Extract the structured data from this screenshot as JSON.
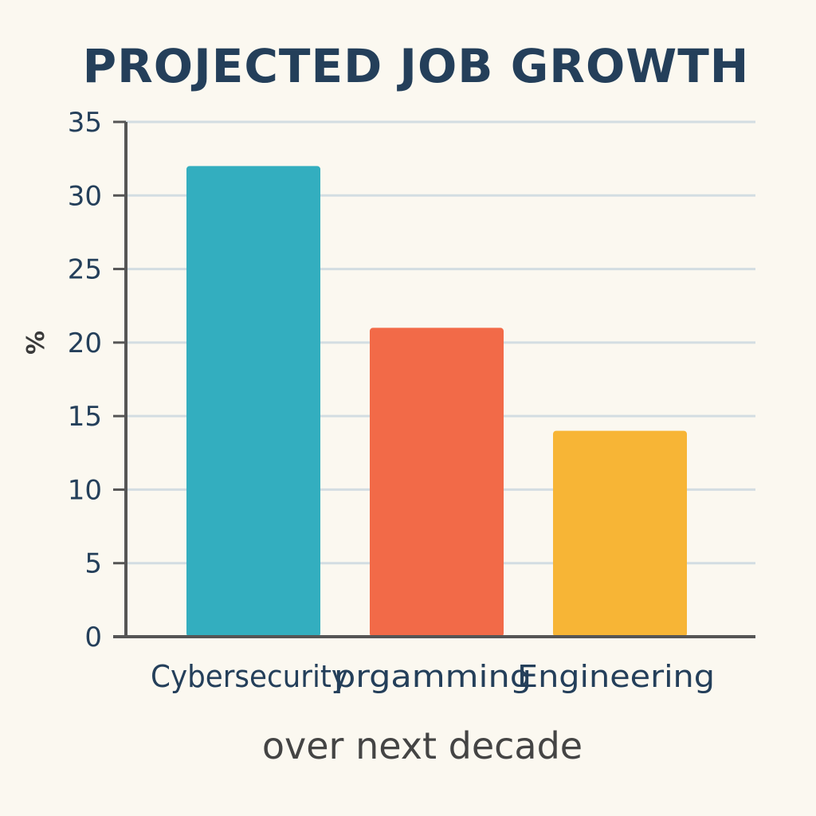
{
  "chart_data": {
    "type": "bar",
    "title": "PROJECTED JOB GROWTH",
    "xlabel": "over next decade",
    "ylabel": "%",
    "categories": [
      "Cybersecurity",
      "prgamming",
      "Engineering"
    ],
    "values": [
      32,
      21,
      14
    ],
    "ylim": [
      0,
      35
    ],
    "yticks": [
      0,
      5,
      10,
      15,
      20,
      25,
      30,
      35
    ],
    "grid": true,
    "legend": "none"
  },
  "colors": {
    "background": "#fbf8f0",
    "bars": [
      "#33aebf",
      "#f26a48",
      "#f7b536"
    ],
    "grid": "#d3dde2",
    "axis": "#555555",
    "text": "#243f5a"
  }
}
